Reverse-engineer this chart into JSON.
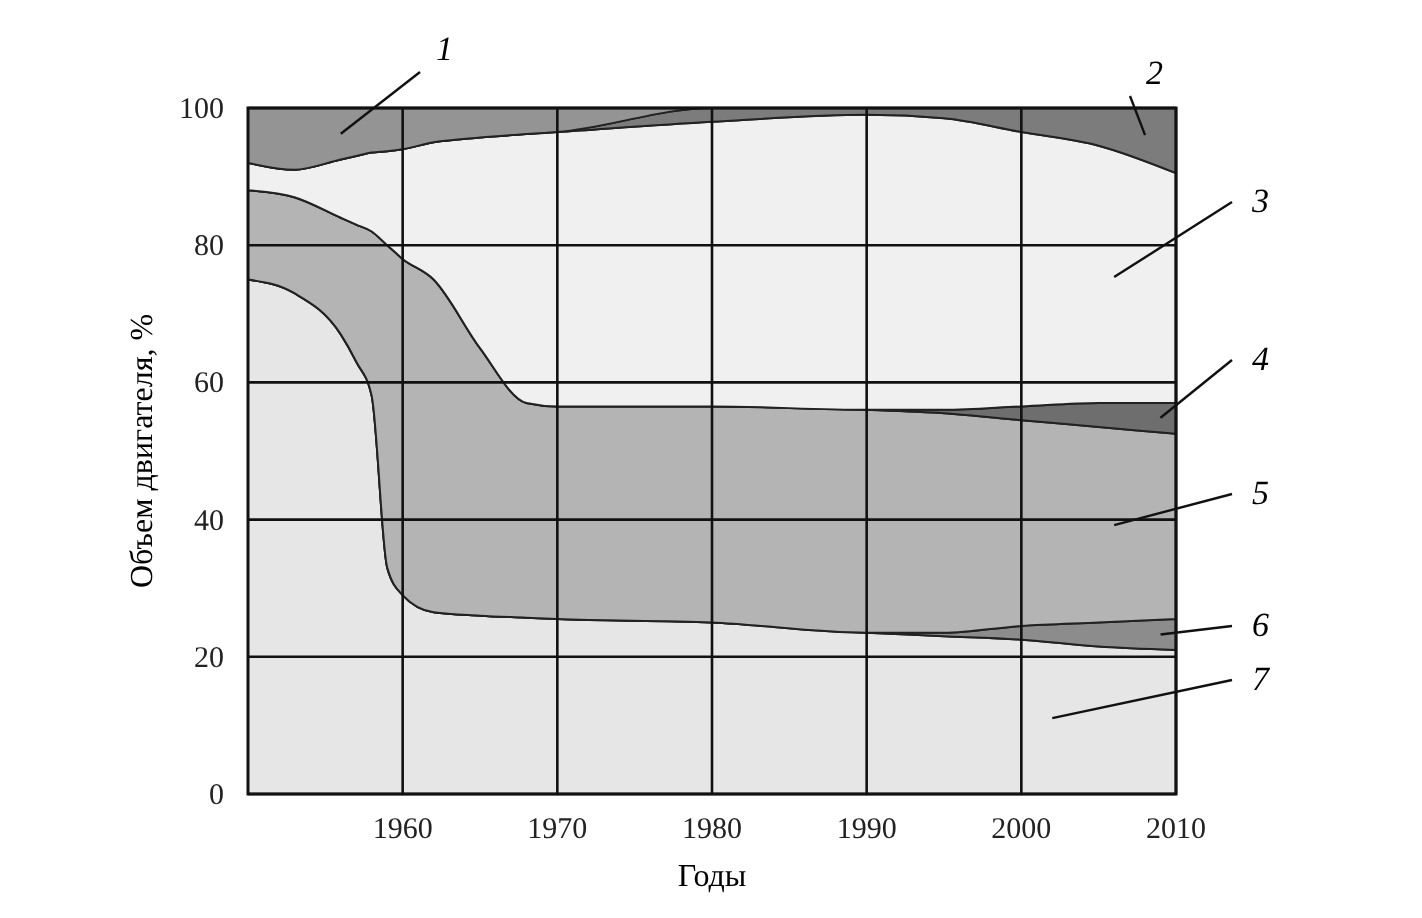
{
  "chart_data": {
    "type": "area",
    "stacked": true,
    "xlabel": "Годы",
    "ylabel": "Объем двигателя, %",
    "x": [
      1950,
      1953,
      1956,
      1957,
      1958,
      1959,
      1960,
      1962,
      1965,
      1968,
      1970,
      1980,
      1990,
      1995,
      2000,
      2005,
      2010
    ],
    "xlim": [
      1950,
      2010
    ],
    "xticks": [
      1960,
      1970,
      1980,
      1990,
      2000,
      2010
    ],
    "ylim": [
      0,
      100
    ],
    "yticks": [
      0,
      20,
      40,
      60,
      80,
      100
    ],
    "grid": true,
    "series": [
      {
        "name": "7",
        "color": "#e6e6e6",
        "values": [
          75,
          73,
          67,
          63,
          58,
          33,
          29,
          26.5,
          26,
          25.7,
          25.5,
          25,
          23.5,
          23,
          22.5,
          21.5,
          21
        ]
      },
      {
        "name": "6",
        "color": "#8c8c8c",
        "values": [
          0,
          0,
          0,
          0,
          0,
          0,
          0,
          0,
          0,
          0,
          0,
          0,
          0,
          0.5,
          2,
          3.5,
          4.5
        ]
      },
      {
        "name": "5",
        "color": "#b4b4b4",
        "values": [
          13,
          14,
          17,
          20,
          24,
          47,
          49,
          48.5,
          39,
          31.3,
          31,
          31.5,
          32.5,
          32,
          30,
          28.5,
          27
        ]
      },
      {
        "name": "4",
        "color": "#6e6e6e",
        "values": [
          0,
          0,
          0,
          0,
          0,
          0,
          0,
          0,
          0,
          0,
          0,
          0,
          0,
          0.5,
          2,
          3.5,
          4.5
        ]
      },
      {
        "name": "3",
        "color": "#f0f0f0",
        "values": [
          4,
          4,
          8.5,
          10,
          11.5,
          13.7,
          16,
          20,
          30.7,
          39.2,
          40,
          41.5,
          43,
          42.5,
          40,
          37.5,
          33.5
        ]
      },
      {
        "name": "2",
        "color": "#7c7c7c",
        "values": [
          0,
          0,
          0,
          0,
          0,
          0,
          0,
          0,
          0,
          0,
          0,
          2,
          1,
          1.5,
          3.5,
          5.5,
          9.5
        ]
      },
      {
        "name": "1",
        "color": "#949494",
        "values": [
          8,
          9,
          7.5,
          7,
          6.5,
          6.3,
          6,
          5,
          4.3,
          3.8,
          3.5,
          0,
          0,
          0,
          0,
          0,
          0
        ]
      }
    ]
  }
}
